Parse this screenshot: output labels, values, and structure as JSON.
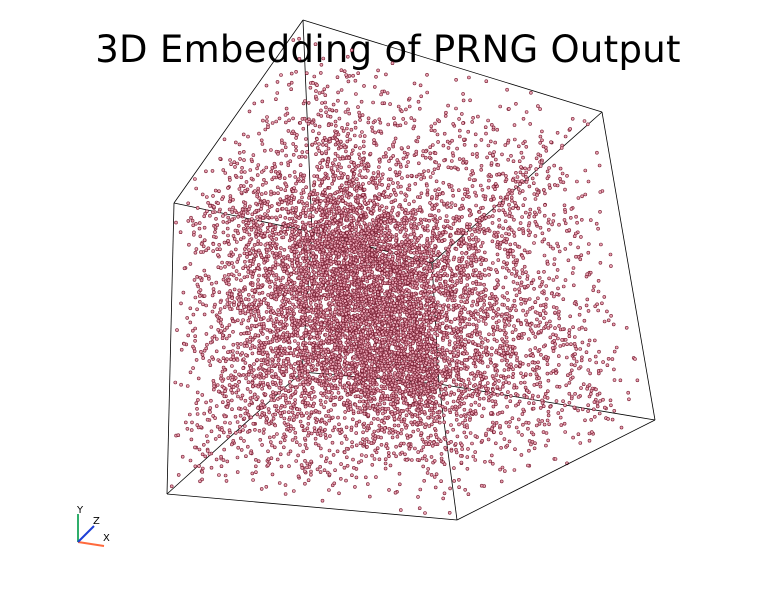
{
  "title": "3D Embedding of PRNG Output",
  "chart_data": {
    "type": "scatter",
    "title": "3D Embedding of PRNG Output",
    "dimensions": 3,
    "point_count": 9000,
    "distribution": "uniform",
    "x_range": [
      0,
      1
    ],
    "y_range": [
      0,
      1
    ],
    "z_range": [
      0,
      1
    ],
    "bounding_box": true,
    "grid": false,
    "legend": "none",
    "axes_widget": {
      "x": "X",
      "y": "Y",
      "z": "Z"
    },
    "colors": {
      "point_fill": "#e9a3b3",
      "point_edge": "#7a1f33",
      "box_edge": "#000000",
      "axis_x": "#ff6a3d",
      "axis_y": "#2fae6b",
      "axis_z": "#1d3fd6"
    }
  }
}
